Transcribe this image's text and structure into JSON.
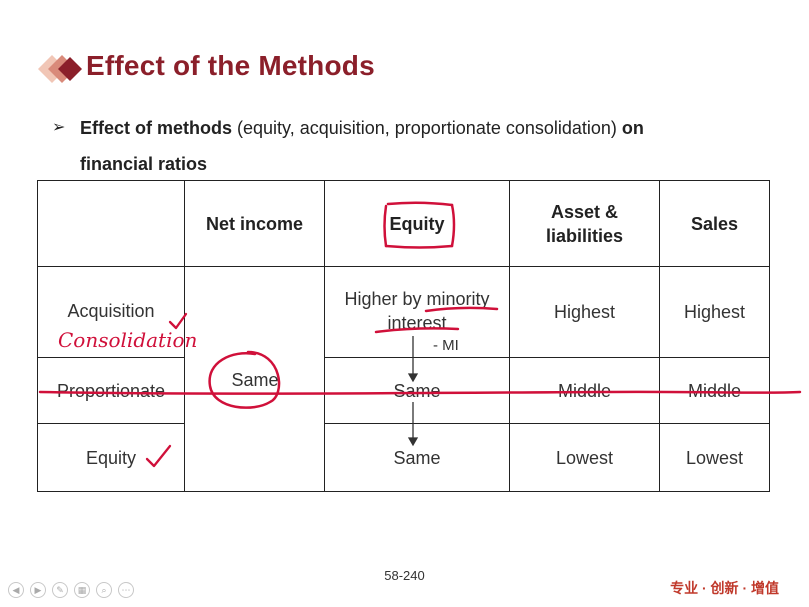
{
  "slide": {
    "title": "Effect of the Methods",
    "bullet": {
      "bold_lead": "Effect of methods",
      "normal_text": " (equity, acquisition, proportionate consolidation) ",
      "bold_tail_1": "on",
      "bold_tail_2": "financial ratios"
    }
  },
  "table": {
    "headers": {
      "net_income": "Net income",
      "equity": "Equity",
      "assets_line1": "Asset &",
      "assets_line2": "liabilities",
      "sales": "Sales"
    },
    "rows": [
      {
        "method": "Acquisition",
        "equity_line1": "Higher by minority",
        "equity_line2": "interest",
        "assets": "Highest",
        "sales": "Highest"
      },
      {
        "method": "Proportionate",
        "equity": "Same",
        "assets": "Middle",
        "sales": "Middle"
      },
      {
        "method": "Equity",
        "equity": "Same",
        "assets": "Lowest",
        "sales": "Lowest"
      }
    ],
    "net_income_merged": "Same"
  },
  "annotations": {
    "consolidation": "Consolidation",
    "minus_mi": "- MI"
  },
  "footer": {
    "page_number": "58-240",
    "brand": "专业 · 创新 · 增值"
  },
  "colors": {
    "title": "#8b1f2a",
    "annotation_ink": "#d0103a",
    "brand": "#c0392b"
  }
}
